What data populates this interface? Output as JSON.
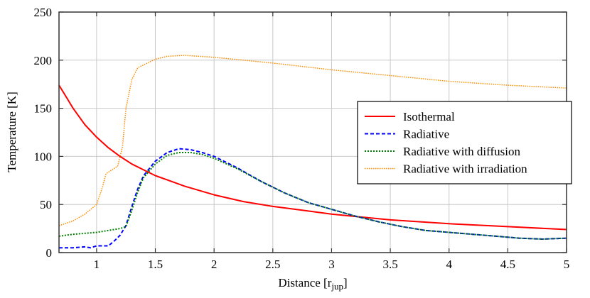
{
  "chart_data": {
    "type": "line",
    "xlabel": "Distance [r",
    "xlabel_sub": "jup",
    "xlabel_end": "]",
    "ylabel": "Temperature [K]",
    "xlim": [
      0.68,
      5
    ],
    "ylim": [
      0,
      250
    ],
    "grid": true,
    "legend_position": "center-right",
    "xticks": [
      1,
      1.5,
      2,
      2.5,
      3,
      3.5,
      4,
      4.5,
      5
    ],
    "xtick_labels": [
      "1",
      "1.5",
      "2",
      "2.5",
      "3",
      "3.5",
      "4",
      "4.5",
      "5"
    ],
    "yticks": [
      0,
      50,
      100,
      150,
      200,
      250
    ],
    "ytick_labels": [
      "0",
      "50",
      "100",
      "150",
      "200",
      "250"
    ],
    "series": [
      {
        "name": "Isothermal",
        "color": "#ff0000",
        "style": "solid",
        "x": [
          0.68,
          0.75,
          0.8,
          0.9,
          1,
          1.1,
          1.2,
          1.3,
          1.4,
          1.5,
          1.75,
          2,
          2.25,
          2.5,
          2.75,
          3,
          3.5,
          4,
          4.5,
          5
        ],
        "y": [
          174,
          160,
          150,
          133,
          120,
          109,
          100,
          92,
          86,
          80,
          69,
          60,
          53,
          48,
          44,
          40,
          34,
          30,
          27,
          24
        ]
      },
      {
        "name": "Radiative",
        "color": "#0000ff",
        "style": "dashed",
        "x": [
          0.68,
          0.8,
          0.9,
          0.95,
          1,
          1.1,
          1.15,
          1.2,
          1.25,
          1.3,
          1.35,
          1.4,
          1.5,
          1.6,
          1.7,
          1.8,
          1.9,
          2,
          2.2,
          2.4,
          2.6,
          2.8,
          3,
          3.2,
          3.4,
          3.6,
          3.8,
          4,
          4.2,
          4.4,
          4.6,
          4.8,
          4.9,
          5
        ],
        "y": [
          5,
          5,
          6,
          5,
          7,
          7,
          12,
          18,
          28,
          48,
          66,
          80,
          95,
          104,
          108,
          107,
          104,
          100,
          88,
          74,
          62,
          52,
          45,
          38,
          32,
          27,
          23,
          21,
          19,
          17,
          15,
          14,
          14.5,
          15
        ]
      },
      {
        "name": "Radiative with diffusion",
        "color": "#008000",
        "style": "dotted",
        "x": [
          0.68,
          0.8,
          1,
          1.1,
          1.2,
          1.25,
          1.3,
          1.35,
          1.4,
          1.5,
          1.6,
          1.7,
          1.8,
          1.9,
          2,
          2.2,
          2.4,
          2.6,
          2.8,
          3,
          3.2,
          3.4,
          3.6,
          3.8,
          4,
          4.2,
          4.4,
          4.6,
          4.8,
          4.9,
          5
        ],
        "y": [
          17,
          19,
          21,
          23,
          25,
          27,
          44,
          63,
          78,
          92,
          101,
          104,
          104,
          102,
          98,
          87,
          74,
          62,
          52,
          45,
          38,
          32,
          27,
          23,
          21,
          19,
          17,
          15,
          14,
          14.5,
          15
        ]
      },
      {
        "name": "Radiative with irradiation",
        "color": "#ff8c00",
        "style": "dotted",
        "x": [
          0.68,
          0.8,
          0.9,
          1,
          1.05,
          1.08,
          1.12,
          1.18,
          1.22,
          1.25,
          1.3,
          1.35,
          1.5,
          1.6,
          1.75,
          2,
          2.5,
          3,
          3.5,
          4,
          4.5,
          5
        ],
        "y": [
          28,
          33,
          40,
          50,
          68,
          82,
          85,
          90,
          110,
          150,
          180,
          192,
          201,
          204,
          205,
          203,
          197,
          190,
          184,
          178,
          174,
          171
        ]
      }
    ]
  }
}
